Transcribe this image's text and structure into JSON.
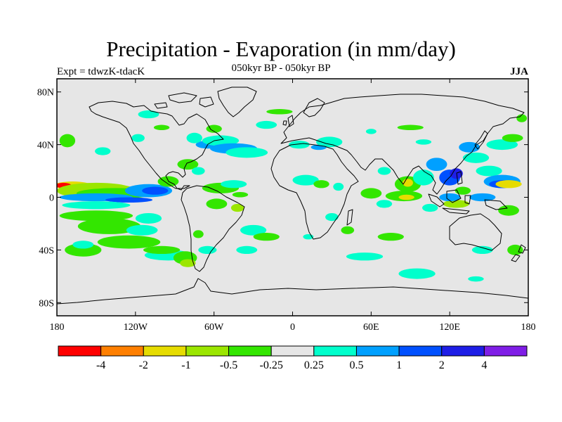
{
  "header": {
    "title": "Precipitation - Evaporation (in mm/day)",
    "subtitle": "050kyr BP - 050kyr BP",
    "left_label": "Expt = tdwzK-tdacK",
    "right_label": "JJA"
  },
  "map": {
    "projection": "cylindrical-equidistant",
    "lon_range": [
      -180,
      180
    ],
    "lat_range": [
      -90,
      90
    ],
    "background_color": "#e6e6e6",
    "coastline_color": "#000000",
    "x_ticks": [
      {
        "lon": -180,
        "label": "180"
      },
      {
        "lon": -120,
        "label": "120W"
      },
      {
        "lon": -60,
        "label": "60W"
      },
      {
        "lon": 0,
        "label": "0"
      },
      {
        "lon": 60,
        "label": "60E"
      },
      {
        "lon": 120,
        "label": "120E"
      },
      {
        "lon": 180,
        "label": "180"
      }
    ],
    "y_ticks": [
      {
        "lat": 80,
        "label": "80N"
      },
      {
        "lat": 40,
        "label": "40N"
      },
      {
        "lat": 0,
        "label": "0"
      },
      {
        "lat": -40,
        "label": "40S"
      },
      {
        "lat": -80,
        "label": "80S"
      }
    ]
  },
  "colorbar": {
    "colors": [
      "#ff0000",
      "#ff7f00",
      "#e6dc00",
      "#9be600",
      "#33e600",
      "#e6e6e6",
      "#00ffcc",
      "#00a0ff",
      "#0050ff",
      "#1e1ee6",
      "#7f1ee6"
    ],
    "labels": [
      "-4",
      "-2",
      "-1",
      "-0.5",
      "-0.25",
      "0.25",
      "0.5",
      "1",
      "2",
      "4"
    ]
  },
  "field": {
    "blobs": [
      {
        "lon": -168,
        "lat": 9,
        "rx": 14,
        "ry": 3,
        "level": 2
      },
      {
        "lon": -175,
        "lat": 9,
        "rx": 6,
        "ry": 2,
        "level": 0
      },
      {
        "lon": -150,
        "lat": 5,
        "rx": 30,
        "ry": 6,
        "level": 3
      },
      {
        "lon": -135,
        "lat": 3,
        "rx": 30,
        "ry": 4,
        "level": 4
      },
      {
        "lon": -150,
        "lat": 0,
        "rx": 28,
        "ry": 3,
        "level": 7
      },
      {
        "lon": -125,
        "lat": -2,
        "rx": 18,
        "ry": 2,
        "level": 8
      },
      {
        "lon": -110,
        "lat": 5,
        "rx": 18,
        "ry": 5,
        "level": 7
      },
      {
        "lon": -105,
        "lat": 5,
        "rx": 10,
        "ry": 3,
        "level": 8
      },
      {
        "lon": -95,
        "lat": 12,
        "rx": 8,
        "ry": 4,
        "level": 4
      },
      {
        "lon": -150,
        "lat": -6,
        "rx": 26,
        "ry": 3,
        "level": 6
      },
      {
        "lon": -150,
        "lat": -14,
        "rx": 28,
        "ry": 4,
        "level": 4
      },
      {
        "lon": -140,
        "lat": -22,
        "rx": 24,
        "ry": 6,
        "level": 4
      },
      {
        "lon": -115,
        "lat": -25,
        "rx": 12,
        "ry": 4,
        "level": 6
      },
      {
        "lon": -125,
        "lat": -34,
        "rx": 24,
        "ry": 5,
        "level": 4
      },
      {
        "lon": -95,
        "lat": -44,
        "rx": 18,
        "ry": 4,
        "level": 6
      },
      {
        "lon": -100,
        "lat": -40,
        "rx": 14,
        "ry": 3,
        "level": 4
      },
      {
        "lon": -110,
        "lat": -16,
        "rx": 10,
        "ry": 4,
        "level": 6
      },
      {
        "lon": -160,
        "lat": -40,
        "rx": 14,
        "ry": 5,
        "level": 4
      },
      {
        "lon": -160,
        "lat": -36,
        "rx": 8,
        "ry": 3,
        "level": 6
      },
      {
        "lon": -82,
        "lat": -46,
        "rx": 9,
        "ry": 5,
        "level": 4
      },
      {
        "lon": -80,
        "lat": -50,
        "rx": 6,
        "ry": 3,
        "level": 3
      },
      {
        "lon": -65,
        "lat": -40,
        "rx": 7,
        "ry": 3,
        "level": 6
      },
      {
        "lon": -72,
        "lat": -28,
        "rx": 4,
        "ry": 3,
        "level": 4
      },
      {
        "lon": -172,
        "lat": 43,
        "rx": 6,
        "ry": 5,
        "level": 4
      },
      {
        "lon": -145,
        "lat": 35,
        "rx": 6,
        "ry": 3,
        "level": 6
      },
      {
        "lon": -80,
        "lat": 25,
        "rx": 8,
        "ry": 4,
        "level": 4
      },
      {
        "lon": -72,
        "lat": 20,
        "rx": 5,
        "ry": 3,
        "level": 6
      },
      {
        "lon": -65,
        "lat": 40,
        "rx": 9,
        "ry": 3,
        "level": 7
      },
      {
        "lon": -55,
        "lat": 43,
        "rx": 14,
        "ry": 4,
        "level": 6
      },
      {
        "lon": -45,
        "lat": 37,
        "rx": 18,
        "ry": 4,
        "level": 7
      },
      {
        "lon": -35,
        "lat": 34,
        "rx": 16,
        "ry": 4,
        "level": 6
      },
      {
        "lon": -75,
        "lat": 45,
        "rx": 6,
        "ry": 4,
        "level": 6
      },
      {
        "lon": -60,
        "lat": 52,
        "rx": 6,
        "ry": 3,
        "level": 4
      },
      {
        "lon": -118,
        "lat": 45,
        "rx": 5,
        "ry": 3,
        "level": 6
      },
      {
        "lon": -55,
        "lat": 7,
        "rx": 14,
        "ry": 4,
        "level": 4
      },
      {
        "lon": -45,
        "lat": 10,
        "rx": 10,
        "ry": 3,
        "level": 6
      },
      {
        "lon": -40,
        "lat": 2,
        "rx": 6,
        "ry": 2,
        "level": 4
      },
      {
        "lon": -58,
        "lat": -5,
        "rx": 8,
        "ry": 4,
        "level": 4
      },
      {
        "lon": -42,
        "lat": -8,
        "rx": 5,
        "ry": 3,
        "level": 3
      },
      {
        "lon": -30,
        "lat": -25,
        "rx": 10,
        "ry": 4,
        "level": 6
      },
      {
        "lon": -20,
        "lat": -30,
        "rx": 10,
        "ry": 3,
        "level": 4
      },
      {
        "lon": -35,
        "lat": -40,
        "rx": 8,
        "ry": 3,
        "level": 6
      },
      {
        "lon": 10,
        "lat": 13,
        "rx": 10,
        "ry": 4,
        "level": 6
      },
      {
        "lon": 22,
        "lat": 10,
        "rx": 6,
        "ry": 3,
        "level": 4
      },
      {
        "lon": 35,
        "lat": 8,
        "rx": 4,
        "ry": 3,
        "level": 6
      },
      {
        "lon": 5,
        "lat": 40,
        "rx": 8,
        "ry": 3,
        "level": 6
      },
      {
        "lon": 20,
        "lat": 38,
        "rx": 6,
        "ry": 2,
        "level": 7
      },
      {
        "lon": 28,
        "lat": 42,
        "rx": 10,
        "ry": 4,
        "level": 6
      },
      {
        "lon": 30,
        "lat": -15,
        "rx": 5,
        "ry": 3,
        "level": 6
      },
      {
        "lon": 42,
        "lat": -25,
        "rx": 5,
        "ry": 3,
        "level": 4
      },
      {
        "lon": 12,
        "lat": -30,
        "rx": 4,
        "ry": 2,
        "level": 6
      },
      {
        "lon": 55,
        "lat": -45,
        "rx": 14,
        "ry": 3,
        "level": 6
      },
      {
        "lon": 75,
        "lat": -30,
        "rx": 10,
        "ry": 3,
        "level": 4
      },
      {
        "lon": 60,
        "lat": 3,
        "rx": 8,
        "ry": 4,
        "level": 4
      },
      {
        "lon": 70,
        "lat": 20,
        "rx": 5,
        "ry": 3,
        "level": 6
      },
      {
        "lon": 88,
        "lat": 10,
        "rx": 10,
        "ry": 6,
        "level": 4
      },
      {
        "lon": 88,
        "lat": 11,
        "rx": 4,
        "ry": 3,
        "level": 2
      },
      {
        "lon": 85,
        "lat": 1,
        "rx": 14,
        "ry": 4,
        "level": 4
      },
      {
        "lon": 87,
        "lat": 0,
        "rx": 6,
        "ry": 2,
        "level": 2
      },
      {
        "lon": 70,
        "lat": -5,
        "rx": 6,
        "ry": 3,
        "level": 6
      },
      {
        "lon": 100,
        "lat": 15,
        "rx": 8,
        "ry": 6,
        "level": 6
      },
      {
        "lon": 110,
        "lat": 25,
        "rx": 8,
        "ry": 5,
        "level": 7
      },
      {
        "lon": 120,
        "lat": 15,
        "rx": 8,
        "ry": 6,
        "level": 8
      },
      {
        "lon": 125,
        "lat": 18,
        "rx": 5,
        "ry": 4,
        "level": 9
      },
      {
        "lon": 135,
        "lat": 38,
        "rx": 8,
        "ry": 4,
        "level": 7
      },
      {
        "lon": 140,
        "lat": 30,
        "rx": 10,
        "ry": 4,
        "level": 6
      },
      {
        "lon": 150,
        "lat": 20,
        "rx": 10,
        "ry": 4,
        "level": 6
      },
      {
        "lon": 160,
        "lat": 12,
        "rx": 14,
        "ry": 5,
        "level": 7
      },
      {
        "lon": 160,
        "lat": 10,
        "rx": 10,
        "ry": 3,
        "level": 8
      },
      {
        "lon": 165,
        "lat": 10,
        "rx": 10,
        "ry": 3,
        "level": 2
      },
      {
        "lon": 130,
        "lat": 5,
        "rx": 6,
        "ry": 3,
        "level": 4
      },
      {
        "lon": 145,
        "lat": 0,
        "rx": 10,
        "ry": 3,
        "level": 7
      },
      {
        "lon": 125,
        "lat": -5,
        "rx": 10,
        "ry": 3,
        "level": 3
      },
      {
        "lon": 120,
        "lat": 0,
        "rx": 8,
        "ry": 3,
        "level": 7
      },
      {
        "lon": 105,
        "lat": -8,
        "rx": 6,
        "ry": 3,
        "level": 6
      },
      {
        "lon": 165,
        "lat": -10,
        "rx": 8,
        "ry": 4,
        "level": 4
      },
      {
        "lon": 160,
        "lat": 40,
        "rx": 12,
        "ry": 4,
        "level": 6
      },
      {
        "lon": 168,
        "lat": 45,
        "rx": 8,
        "ry": 3,
        "level": 4
      },
      {
        "lon": 145,
        "lat": -40,
        "rx": 8,
        "ry": 3,
        "level": 6
      },
      {
        "lon": 170,
        "lat": -40,
        "rx": 6,
        "ry": 4,
        "level": 4
      },
      {
        "lon": 95,
        "lat": -58,
        "rx": 14,
        "ry": 4,
        "level": 6
      },
      {
        "lon": 140,
        "lat": -62,
        "rx": 6,
        "ry": 2,
        "level": 6
      },
      {
        "lon": 60,
        "lat": 50,
        "rx": 4,
        "ry": 2,
        "level": 6
      },
      {
        "lon": 90,
        "lat": 53,
        "rx": 10,
        "ry": 2,
        "level": 4
      },
      {
        "lon": 100,
        "lat": 42,
        "rx": 6,
        "ry": 2,
        "level": 6
      },
      {
        "lon": 175,
        "lat": 60,
        "rx": 4,
        "ry": 3,
        "level": 4
      },
      {
        "lon": -110,
        "lat": 63,
        "rx": 8,
        "ry": 3,
        "level": 6
      },
      {
        "lon": -100,
        "lat": 53,
        "rx": 6,
        "ry": 2,
        "level": 4
      },
      {
        "lon": -20,
        "lat": 55,
        "rx": 8,
        "ry": 3,
        "level": 6
      },
      {
        "lon": -10,
        "lat": 65,
        "rx": 10,
        "ry": 2,
        "level": 4
      }
    ]
  }
}
